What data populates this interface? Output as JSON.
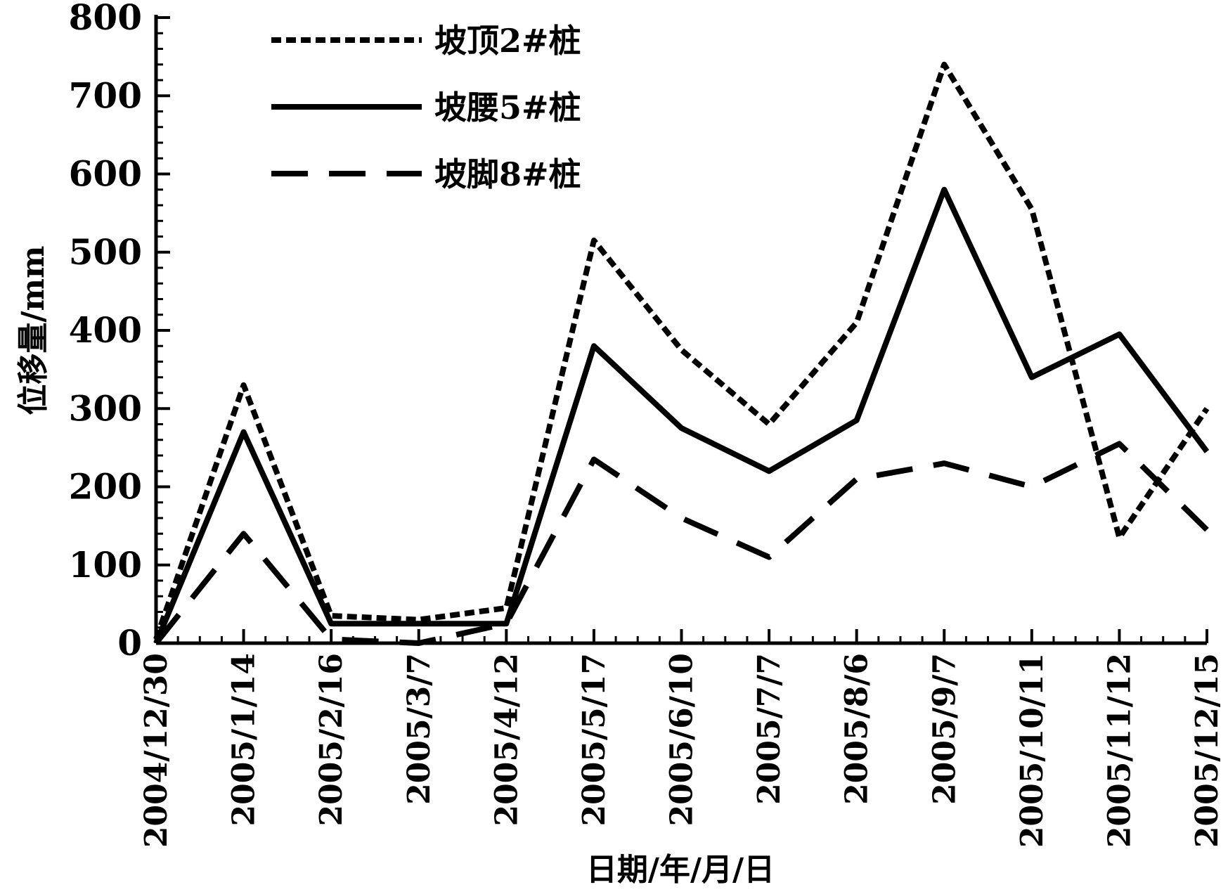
{
  "chart_data": {
    "type": "line",
    "title": "",
    "xlabel": "日期/年/月/日",
    "ylabel": "位移量/mm",
    "ylim": [
      0,
      800
    ],
    "yticks": [
      0,
      100,
      200,
      300,
      400,
      500,
      600,
      700,
      800
    ],
    "categories": [
      "2004/12/30",
      "2005/1/14",
      "2005/2/16",
      "2005/3/7",
      "2005/4/12",
      "2005/5/17",
      "2005/6/10",
      "2005/7/7",
      "2005/8/6",
      "2005/9/7",
      "2005/10/11",
      "2005/11/12",
      "2005/12/15"
    ],
    "series": [
      {
        "name": "坡顶2#桩",
        "style": "dotted",
        "values": [
          5,
          330,
          35,
          30,
          45,
          515,
          375,
          280,
          410,
          740,
          555,
          135,
          300
        ]
      },
      {
        "name": "坡腰5#桩",
        "style": "solid",
        "values": [
          0,
          270,
          25,
          25,
          25,
          380,
          275,
          220,
          285,
          580,
          340,
          395,
          245
        ]
      },
      {
        "name": "坡脚8#桩",
        "style": "dashed",
        "values": [
          0,
          140,
          5,
          0,
          25,
          235,
          160,
          110,
          210,
          230,
          200,
          255,
          145
        ]
      }
    ],
    "legend_position": "top-left",
    "grid": false
  }
}
